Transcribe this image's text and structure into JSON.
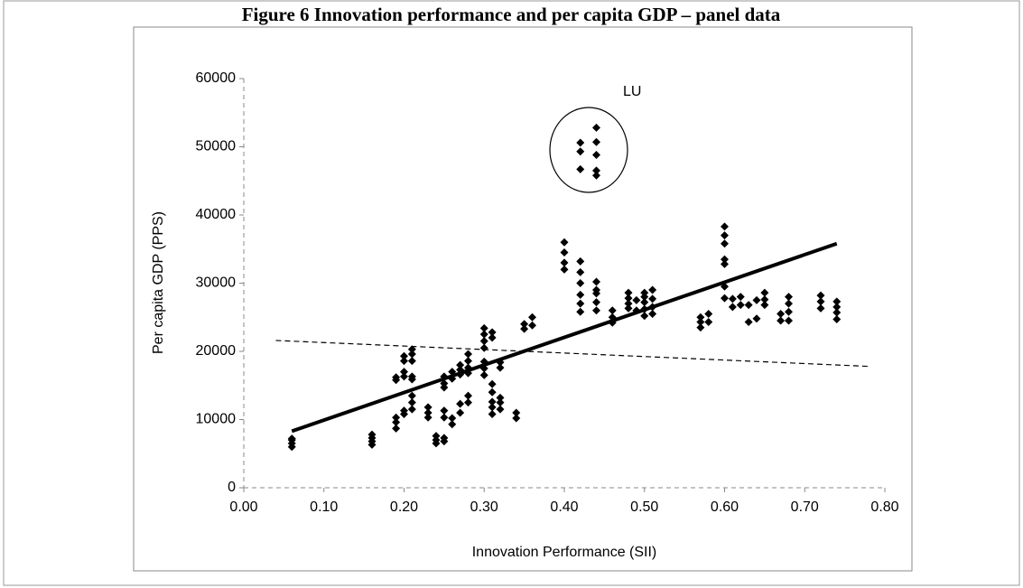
{
  "chart_data": {
    "type": "scatter",
    "title": "Figure 6 Innovation performance and per capita GDP – panel data",
    "x_label": "Innovation Performance (SII)",
    "y_label": "Per capita GDP (PPS)",
    "annotation": "LU",
    "color": "#000000",
    "xlim": [
      0,
      0.8
    ],
    "ylim": [
      0,
      60000
    ],
    "xticks": [
      {
        "value": 0,
        "label": "0.00"
      },
      {
        "value": 0.1,
        "label": "0.10"
      },
      {
        "value": 0.2,
        "label": "0.20"
      },
      {
        "value": 0.3,
        "label": "0.30"
      },
      {
        "value": 0.4,
        "label": "0.40"
      },
      {
        "value": 0.5,
        "label": "0.50"
      },
      {
        "value": 0.6,
        "label": "0.60"
      },
      {
        "value": 0.7,
        "label": "0.70"
      },
      {
        "value": 0.8,
        "label": "0.80"
      }
    ],
    "yticks": [
      0,
      10000,
      20000,
      30000,
      40000,
      50000,
      60000
    ],
    "x": [
      0.06,
      0.06,
      0.06,
      0.06,
      0.16,
      0.16,
      0.16,
      0.16,
      0.19,
      0.19,
      0.19,
      0.19,
      0.19,
      0.2,
      0.2,
      0.2,
      0.2,
      0.2,
      0.2,
      0.21,
      0.21,
      0.21,
      0.21,
      0.21,
      0.21,
      0.21,
      0.21,
      0.23,
      0.23,
      0.23,
      0.24,
      0.24,
      0.24,
      0.25,
      0.25,
      0.25,
      0.25,
      0.25,
      0.25,
      0.25,
      0.26,
      0.26,
      0.26,
      0.26,
      0.27,
      0.27,
      0.27,
      0.27,
      0.27,
      0.28,
      0.28,
      0.28,
      0.28,
      0.28,
      0.28,
      0.3,
      0.3,
      0.3,
      0.3,
      0.3,
      0.3,
      0.3,
      0.31,
      0.31,
      0.31,
      0.31,
      0.31,
      0.31,
      0.31,
      0.32,
      0.32,
      0.32,
      0.32,
      0.32,
      0.34,
      0.34,
      0.35,
      0.35,
      0.36,
      0.36,
      0.4,
      0.4,
      0.4,
      0.4,
      0.42,
      0.42,
      0.42,
      0.42,
      0.42,
      0.42,
      0.44,
      0.44,
      0.44,
      0.44,
      0.44,
      0.46,
      0.46,
      0.46,
      0.48,
      0.48,
      0.48,
      0.48,
      0.49,
      0.49,
      0.5,
      0.5,
      0.5,
      0.5,
      0.5,
      0.51,
      0.51,
      0.51,
      0.51,
      0.57,
      0.57,
      0.57,
      0.58,
      0.58,
      0.6,
      0.6,
      0.6,
      0.6,
      0.6,
      0.6,
      0.6,
      0.61,
      0.61,
      0.62,
      0.62,
      0.63,
      0.63,
      0.64,
      0.64,
      0.65,
      0.65,
      0.65,
      0.67,
      0.67,
      0.68,
      0.68,
      0.68,
      0.68,
      0.72,
      0.72,
      0.72,
      0.74,
      0.74,
      0.74,
      0.74,
      0.42,
      0.42,
      0.42,
      0.44,
      0.44,
      0.44,
      0.44,
      0.44
    ],
    "y": [
      6000,
      6500,
      7000,
      7200,
      6300,
      6800,
      7300,
      7800,
      8700,
      9600,
      10300,
      15800,
      16200,
      10800,
      11300,
      16300,
      17000,
      18600,
      19300,
      11500,
      12500,
      13500,
      15900,
      16300,
      18600,
      19600,
      20300,
      10300,
      11000,
      11800,
      6500,
      7000,
      7600,
      6800,
      7300,
      10300,
      11300,
      14700,
      15300,
      16300,
      9300,
      10200,
      16000,
      17000,
      11000,
      12300,
      16600,
      17300,
      18000,
      12500,
      13500,
      16800,
      17600,
      18600,
      19600,
      16500,
      17500,
      18500,
      20500,
      21500,
      22500,
      23400,
      10800,
      11800,
      12600,
      14000,
      15200,
      22000,
      22800,
      11500,
      12500,
      13200,
      17600,
      18400,
      10200,
      11000,
      23300,
      24000,
      23800,
      25000,
      32000,
      33000,
      34500,
      36000,
      25800,
      27000,
      28300,
      30000,
      31600,
      33200,
      26000,
      27200,
      28500,
      29000,
      30200,
      24200,
      25000,
      26000,
      26300,
      27000,
      27800,
      28600,
      26000,
      27500,
      25200,
      26200,
      27200,
      28000,
      28600,
      25500,
      26500,
      27700,
      29000,
      23500,
      24300,
      25000,
      24300,
      25500,
      27800,
      29500,
      32800,
      33500,
      35800,
      37000,
      38300,
      26500,
      27700,
      26800,
      28000,
      24300,
      26800,
      24800,
      27500,
      26800,
      27600,
      28600,
      24500,
      25500,
      24500,
      25800,
      27000,
      28000,
      26300,
      27300,
      28200,
      24700,
      25700,
      26500,
      27300,
      46700,
      49300,
      50600,
      45800,
      46500,
      48800,
      50700,
      52800
    ],
    "trendlines": [
      {
        "x": [
          0.06,
          0.74
        ],
        "y": [
          8300,
          35800
        ],
        "style": "solid"
      },
      {
        "x": [
          0.04,
          0.78
        ],
        "y": [
          21600,
          17800
        ],
        "style": "dashed"
      }
    ]
  }
}
